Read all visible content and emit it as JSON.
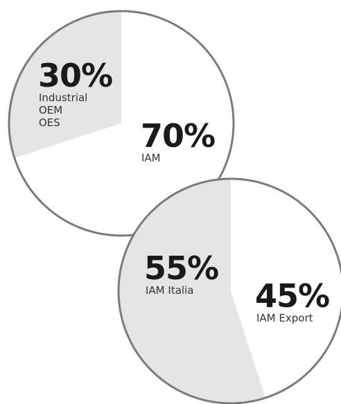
{
  "chart_data": [
    {
      "type": "pie",
      "slices": [
        {
          "value": 30,
          "value_label": "30%",
          "label_lines": [
            "Industrial",
            "OEM",
            "OES"
          ]
        },
        {
          "value": 70,
          "value_label": "70%",
          "label_lines": [
            "IAM"
          ]
        }
      ],
      "colors": {
        "shaded": "#e5e5e5",
        "plain": "#ffffff",
        "outline": "#7a7a7a"
      }
    },
    {
      "type": "pie",
      "slices": [
        {
          "value": 55,
          "value_label": "55%",
          "label_lines": [
            "IAM Italia"
          ]
        },
        {
          "value": 45,
          "value_label": "45%",
          "label_lines": [
            "IAM Export"
          ]
        }
      ],
      "colors": {
        "shaded": "#e5e5e5",
        "plain": "#ffffff",
        "outline": "#7a7a7a"
      }
    }
  ]
}
